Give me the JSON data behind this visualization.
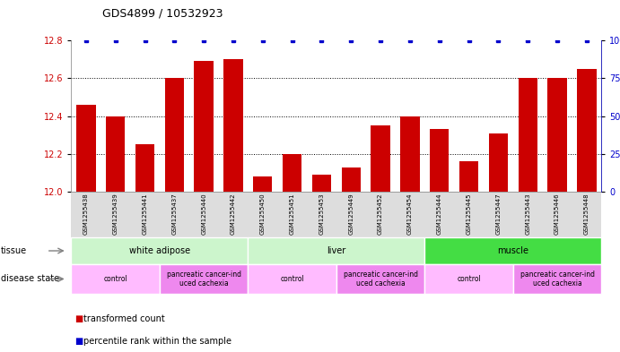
{
  "title": "GDS4899 / 10532923",
  "samples": [
    "GSM1255438",
    "GSM1255439",
    "GSM1255441",
    "GSM1255437",
    "GSM1255440",
    "GSM1255442",
    "GSM1255450",
    "GSM1255451",
    "GSM1255453",
    "GSM1255449",
    "GSM1255452",
    "GSM1255454",
    "GSM1255444",
    "GSM1255445",
    "GSM1255447",
    "GSM1255443",
    "GSM1255446",
    "GSM1255448"
  ],
  "bar_values": [
    12.46,
    12.4,
    12.25,
    12.6,
    12.69,
    12.7,
    12.08,
    12.2,
    12.09,
    12.13,
    12.35,
    12.4,
    12.33,
    12.16,
    12.31,
    12.6,
    12.6,
    12.65
  ],
  "percentile_values": [
    100,
    100,
    100,
    100,
    100,
    100,
    100,
    100,
    100,
    100,
    100,
    100,
    100,
    100,
    100,
    100,
    100,
    100
  ],
  "bar_color": "#cc0000",
  "percentile_color": "#0000cc",
  "ylim_left": [
    12.0,
    12.8
  ],
  "ylim_right": [
    0,
    100
  ],
  "yticks_left": [
    12.0,
    12.2,
    12.4,
    12.6,
    12.8
  ],
  "yticks_right": [
    0,
    25,
    50,
    75,
    100
  ],
  "ytick_labels_right": [
    "0",
    "25",
    "50",
    "75",
    "100%"
  ],
  "tissue_groups": [
    {
      "label": "white adipose",
      "start": 0,
      "end": 5,
      "color": "#ccf0cc"
    },
    {
      "label": "liver",
      "start": 6,
      "end": 11,
      "color": "#ccf0cc"
    },
    {
      "label": "muscle",
      "start": 12,
      "end": 17,
      "color": "#44ee44"
    }
  ],
  "tissue_colors": [
    "#ccf5cc",
    "#ccf5cc",
    "#44dd44"
  ],
  "disease_groups": [
    {
      "label": "control",
      "start": 0,
      "end": 2,
      "color": "#ffaaff"
    },
    {
      "label": "pancreatic cancer-ind\nuced cachexia",
      "start": 3,
      "end": 5,
      "color": "#dd88dd"
    },
    {
      "label": "control",
      "start": 6,
      "end": 8,
      "color": "#ffaaff"
    },
    {
      "label": "pancreatic cancer-ind\nuced cachexia",
      "start": 9,
      "end": 11,
      "color": "#dd88dd"
    },
    {
      "label": "control",
      "start": 12,
      "end": 14,
      "color": "#ffaaff"
    },
    {
      "label": "pancreatic cancer-ind\nuced cachexia",
      "start": 15,
      "end": 17,
      "color": "#dd88dd"
    }
  ],
  "control_color": "#ffbbff",
  "cachexia_color": "#ee88ee",
  "legend_items": [
    {
      "label": "transformed count",
      "color": "#cc0000"
    },
    {
      "label": "percentile rank within the sample",
      "color": "#0000cc"
    }
  ],
  "tissue_label": "tissue",
  "disease_label": "disease state",
  "background_color": "#ffffff",
  "xticklabel_bg": "#dddddd"
}
